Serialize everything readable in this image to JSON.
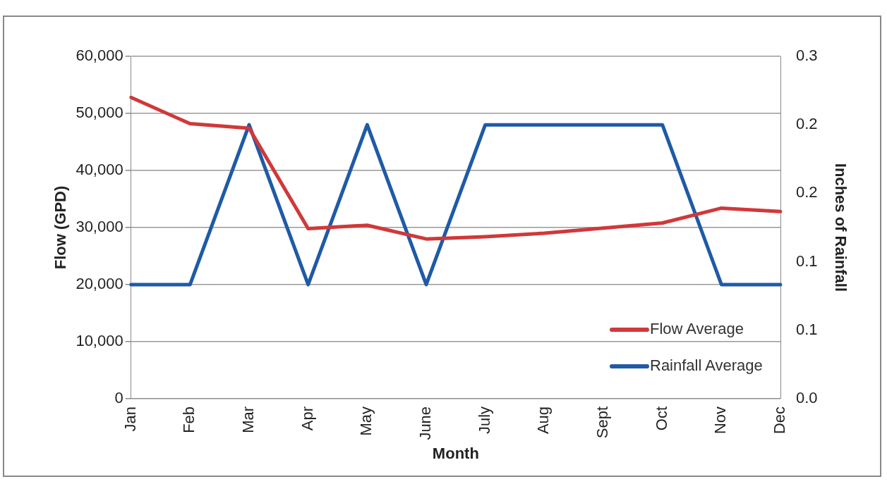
{
  "chart_data": {
    "type": "line",
    "xlabel": "Month",
    "ylabel": "Flow (GPD)",
    "y2label": "Inches of Rainfall",
    "categories": [
      "Jan",
      "Feb",
      "Mar",
      "Apr",
      "May",
      "June",
      "July",
      "Aug",
      "Sept",
      "Oct",
      "Nov",
      "Dec"
    ],
    "series": [
      {
        "name": "Flow Average",
        "color": "#d0383a",
        "values": [
          52800,
          48200,
          47400,
          29800,
          30400,
          28000,
          28400,
          29000,
          29900,
          30800,
          33400,
          32800
        ]
      },
      {
        "name": "Rainfall Average",
        "color": "#1f5aa6",
        "axis": "y2",
        "values": [
          0.1,
          0.1,
          0.24,
          0.1,
          0.24,
          0.1,
          0.24,
          0.24,
          0.24,
          0.24,
          0.1,
          0.1
        ]
      }
    ],
    "ylim": [
      0,
      60000
    ],
    "yticks": [
      {
        "value": 0,
        "label": "0"
      },
      {
        "value": 10000,
        "label": "10,000"
      },
      {
        "value": 20000,
        "label": "20,000"
      },
      {
        "value": 30000,
        "label": "30,000"
      },
      {
        "value": 40000,
        "label": "40,000"
      },
      {
        "value": 50000,
        "label": "50,000"
      },
      {
        "value": 60000,
        "label": "60,000"
      }
    ],
    "y2lim": [
      0,
      0.3
    ],
    "y2ticks": [
      {
        "value": 0,
        "label": "0.0"
      },
      {
        "value": 0.06,
        "label": "0.1"
      },
      {
        "value": 0.12,
        "label": "0.1"
      },
      {
        "value": 0.18,
        "label": "0.2"
      },
      {
        "value": 0.24,
        "label": "0.2"
      },
      {
        "value": 0.3,
        "label": "0.3"
      }
    ],
    "grid": "y",
    "legend": "bottom right",
    "marker": "none",
    "line_style": "solid"
  }
}
